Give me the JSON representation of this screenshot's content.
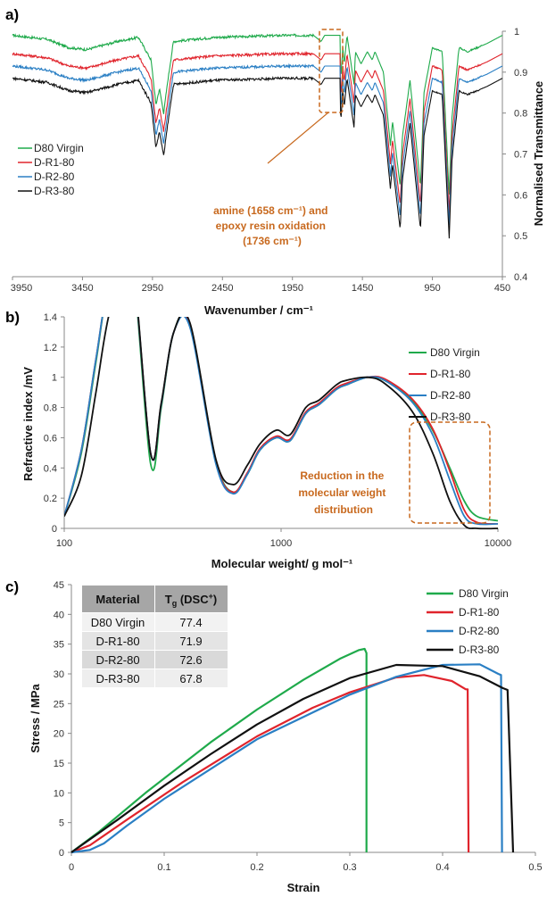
{
  "colors": {
    "D80 Virgin": "#1faa4b",
    "D-R1-80": "#e0242c",
    "D-R2-80": "#2a7fc4",
    "D-R3-80": "#111111",
    "annotation": "#c8691e"
  },
  "chart_data": [
    {
      "panel": "a)",
      "type": "line",
      "xlabel": "Wavenumber / cm⁻¹",
      "ylabel": "Normalised Transmittance",
      "xlim": [
        3950,
        450
      ],
      "ylim": [
        0.4,
        1
      ],
      "x_ticks": [
        3950,
        3450,
        2950,
        2450,
        1950,
        1450,
        950,
        450
      ],
      "y_ticks": [
        0.4,
        0.5,
        0.6,
        0.7,
        0.8,
        0.9,
        1
      ],
      "legend_position": "middle-left",
      "series": [
        {
          "name": "D80 Virgin",
          "offset": 0.0
        },
        {
          "name": "D-R1-80",
          "offset": -0.045
        },
        {
          "name": "D-R2-80",
          "offset": -0.075
        },
        {
          "name": "D-R3-80",
          "offset": -0.105
        }
      ],
      "base_profile": [
        [
          3950,
          0.99
        ],
        [
          3700,
          0.98
        ],
        [
          3550,
          0.96
        ],
        [
          3420,
          0.955
        ],
        [
          3200,
          0.975
        ],
        [
          3050,
          0.985
        ],
        [
          2960,
          0.93
        ],
        [
          2925,
          0.82
        ],
        [
          2900,
          0.86
        ],
        [
          2870,
          0.8
        ],
        [
          2840,
          0.88
        ],
        [
          2800,
          0.975
        ],
        [
          2500,
          0.985
        ],
        [
          2000,
          0.99
        ],
        [
          1800,
          0.99
        ],
        [
          1745,
          0.975
        ],
        [
          1720,
          0.99
        ],
        [
          1610,
          0.99
        ],
        [
          1605,
          0.88
        ],
        [
          1590,
          0.96
        ],
        [
          1580,
          0.92
        ],
        [
          1560,
          0.99
        ],
        [
          1510,
          0.87
        ],
        [
          1500,
          0.95
        ],
        [
          1460,
          0.92
        ],
        [
          1415,
          0.95
        ],
        [
          1380,
          0.93
        ],
        [
          1360,
          0.95
        ],
        [
          1300,
          0.9
        ],
        [
          1250,
          0.72
        ],
        [
          1235,
          0.78
        ],
        [
          1180,
          0.62
        ],
        [
          1165,
          0.74
        ],
        [
          1110,
          0.88
        ],
        [
          1035,
          0.62
        ],
        [
          1010,
          0.85
        ],
        [
          950,
          0.96
        ],
        [
          880,
          0.95
        ],
        [
          830,
          0.6
        ],
        [
          810,
          0.79
        ],
        [
          760,
          0.96
        ],
        [
          700,
          0.95
        ],
        [
          560,
          0.97
        ],
        [
          450,
          0.99
        ]
      ],
      "annotation": "amine (1658 cm⁻¹) and epoxy resin oxidation (1736 cm⁻¹)"
    },
    {
      "panel": "b)",
      "type": "line",
      "xlabel": "Molecular weight/ g mol⁻¹",
      "ylabel": "Refractive index /mV",
      "x_scale": "log",
      "xlim": [
        100,
        10000
      ],
      "ylim": [
        0,
        1.4
      ],
      "x_ticks": [
        100,
        1000,
        10000
      ],
      "y_ticks": [
        0,
        0.2,
        0.4,
        0.6,
        0.8,
        1,
        1.2,
        1.4
      ],
      "legend_position": "top-right",
      "annotation": "Reduction in the molecular weight distribution",
      "series": [
        {
          "name": "D80 Virgin",
          "x": [
            100,
            120,
            140,
            160,
            200,
            250,
            280,
            320,
            380,
            500,
            600,
            700,
            800,
            950,
            1100,
            1300,
            1500,
            1800,
            2000,
            2500,
            3000,
            4000,
            5000,
            6000,
            7000,
            8000,
            10000
          ],
          "y": [
            0.08,
            0.5,
            1.1,
            1.6,
            1.9,
            0.43,
            0.8,
            1.3,
            1.35,
            0.45,
            0.24,
            0.36,
            0.52,
            0.6,
            0.58,
            0.76,
            0.82,
            0.92,
            0.95,
            1.0,
            0.98,
            0.85,
            0.65,
            0.4,
            0.18,
            0.08,
            0.05
          ]
        },
        {
          "name": "D-R1-80",
          "x": [
            100,
            120,
            140,
            160,
            200,
            250,
            280,
            320,
            380,
            500,
            600,
            700,
            800,
            950,
            1100,
            1300,
            1500,
            1800,
            2000,
            2500,
            3000,
            4000,
            5000,
            6000,
            7000,
            8000,
            10000
          ],
          "y": [
            0.08,
            0.52,
            1.12,
            1.6,
            1.9,
            0.5,
            0.82,
            1.3,
            1.34,
            0.44,
            0.24,
            0.37,
            0.53,
            0.61,
            0.59,
            0.77,
            0.83,
            0.93,
            0.96,
            1.0,
            0.99,
            0.86,
            0.66,
            0.38,
            0.12,
            0.04,
            0.03
          ]
        },
        {
          "name": "D-R2-80",
          "x": [
            100,
            120,
            140,
            160,
            200,
            250,
            280,
            320,
            380,
            500,
            600,
            700,
            800,
            950,
            1100,
            1300,
            1500,
            1800,
            2000,
            2500,
            3000,
            4000,
            5000,
            6000,
            7000,
            8000,
            10000
          ],
          "y": [
            0.08,
            0.52,
            1.12,
            1.6,
            1.9,
            0.5,
            0.82,
            1.3,
            1.33,
            0.43,
            0.23,
            0.36,
            0.52,
            0.6,
            0.58,
            0.76,
            0.82,
            0.92,
            0.95,
            1.0,
            0.98,
            0.84,
            0.62,
            0.32,
            0.08,
            0.03,
            0.03
          ]
        },
        {
          "name": "D-R3-80",
          "x": [
            100,
            120,
            140,
            160,
            200,
            250,
            280,
            320,
            380,
            500,
            600,
            700,
            800,
            950,
            1100,
            1300,
            1500,
            1800,
            2000,
            2500,
            3000,
            4000,
            5000,
            6000,
            7000,
            8000,
            10000
          ],
          "y": [
            0.08,
            0.35,
            0.9,
            1.4,
            1.9,
            0.5,
            0.83,
            1.3,
            1.36,
            0.46,
            0.29,
            0.42,
            0.56,
            0.65,
            0.62,
            0.8,
            0.85,
            0.95,
            0.98,
            1.0,
            0.96,
            0.78,
            0.5,
            0.18,
            0.02,
            0.0,
            0.0
          ]
        }
      ]
    },
    {
      "panel": "c)",
      "type": "line",
      "xlabel": "Strain",
      "ylabel": "Stress / MPa",
      "xlim": [
        0,
        0.5
      ],
      "ylim": [
        0,
        45
      ],
      "x_ticks": [
        0,
        0.1,
        0.2,
        0.3,
        0.4,
        0.5
      ],
      "y_ticks": [
        0,
        5,
        10,
        15,
        20,
        25,
        30,
        35,
        40,
        45
      ],
      "legend_position": "top-right",
      "series": [
        {
          "name": "D80 Virgin",
          "x": [
            0,
            0.03,
            0.08,
            0.15,
            0.2,
            0.25,
            0.29,
            0.31,
            0.316,
            0.318,
            0.318
          ],
          "y": [
            0,
            3.5,
            10,
            18.5,
            24,
            29,
            32.6,
            34,
            34.2,
            33.5,
            0
          ]
        },
        {
          "name": "D-R1-80",
          "x": [
            0,
            0.02,
            0.06,
            0.12,
            0.2,
            0.26,
            0.3,
            0.35,
            0.38,
            0.41,
            0.425,
            0.427,
            0.428
          ],
          "y": [
            0,
            1.2,
            5.5,
            11.8,
            19.5,
            24.3,
            26.9,
            29.4,
            29.8,
            28.8,
            27.4,
            27.4,
            0
          ]
        },
        {
          "name": "D-R2-80",
          "x": [
            0,
            0.02,
            0.035,
            0.06,
            0.1,
            0.2,
            0.3,
            0.35,
            0.4,
            0.44,
            0.46,
            0.463,
            0.464
          ],
          "y": [
            0,
            0.4,
            1.5,
            4.5,
            9,
            19,
            26.5,
            29.5,
            31.5,
            31.6,
            30,
            29.8,
            0
          ]
        },
        {
          "name": "D-R3-80",
          "x": [
            0,
            0.05,
            0.1,
            0.15,
            0.2,
            0.25,
            0.3,
            0.35,
            0.4,
            0.44,
            0.465,
            0.47,
            0.476
          ],
          "y": [
            0,
            5.5,
            11.2,
            16.5,
            21.5,
            25.8,
            29.3,
            31.5,
            31.3,
            29.6,
            27.6,
            27.3,
            0
          ]
        }
      ],
      "table": {
        "headers": [
          "Material",
          "Tg (DSC+)"
        ],
        "rows": [
          [
            "D80 Virgin",
            "77.4"
          ],
          [
            "D-R1-80",
            "71.9"
          ],
          [
            "D-R2-80",
            "72.6"
          ],
          [
            "D-R3-80",
            "67.8"
          ]
        ]
      }
    }
  ]
}
